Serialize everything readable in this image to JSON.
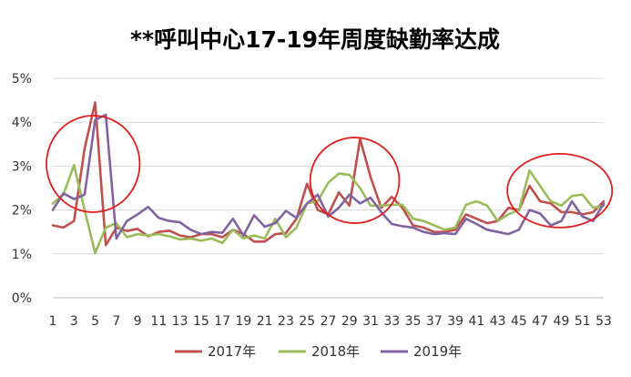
{
  "chart_data": {
    "type": "line",
    "title": "**呼叫中心17-19年周度缺勤率达成",
    "xlabel": "",
    "ylabel": "",
    "ylim": [
      0,
      5
    ],
    "y_ticks": [
      "0%",
      "1%",
      "2%",
      "3%",
      "4%",
      "5%"
    ],
    "x": [
      1,
      2,
      3,
      4,
      5,
      6,
      7,
      8,
      9,
      10,
      11,
      12,
      13,
      14,
      15,
      16,
      17,
      18,
      19,
      20,
      21,
      22,
      23,
      24,
      25,
      26,
      27,
      28,
      29,
      30,
      31,
      32,
      33,
      34,
      35,
      36,
      37,
      38,
      39,
      40,
      41,
      42,
      43,
      44,
      45,
      46,
      47,
      48,
      49,
      50,
      51,
      52,
      53
    ],
    "x_tick_labels": [
      "1",
      "3",
      "5",
      "7",
      "9",
      "11",
      "13",
      "15",
      "17",
      "19",
      "21",
      "23",
      "25",
      "27",
      "29",
      "31",
      "33",
      "35",
      "37",
      "39",
      "41",
      "43",
      "45",
      "47",
      "49",
      "51",
      "53"
    ],
    "grid": "horizontal",
    "legend_position": "bottom",
    "series": [
      {
        "name": "2017年",
        "color": "#C0504D",
        "values": [
          1.65,
          1.6,
          1.75,
          3.4,
          4.45,
          1.2,
          1.6,
          1.52,
          1.57,
          1.4,
          1.5,
          1.53,
          1.42,
          1.38,
          1.45,
          1.45,
          1.38,
          1.55,
          1.45,
          1.28,
          1.28,
          1.45,
          1.47,
          1.8,
          2.6,
          2.0,
          1.9,
          2.4,
          2.1,
          3.62,
          2.75,
          2.05,
          2.3,
          2.05,
          1.65,
          1.6,
          1.5,
          1.5,
          1.55,
          1.9,
          1.8,
          1.7,
          1.75,
          2.05,
          2.0,
          2.55,
          2.2,
          2.15,
          1.95,
          1.95,
          1.9,
          1.95,
          2.2
        ]
      },
      {
        "name": "2018年",
        "color": "#9BBB59",
        "values": [
          2.15,
          2.35,
          3.02,
          2.0,
          1.02,
          1.6,
          1.7,
          1.38,
          1.45,
          1.42,
          1.45,
          1.4,
          1.33,
          1.35,
          1.3,
          1.35,
          1.25,
          1.55,
          1.35,
          1.42,
          1.35,
          1.8,
          1.38,
          1.6,
          2.15,
          2.2,
          2.62,
          2.83,
          2.8,
          2.5,
          2.1,
          2.1,
          2.12,
          2.12,
          1.8,
          1.75,
          1.65,
          1.55,
          1.6,
          2.12,
          2.2,
          2.1,
          1.75,
          1.9,
          2.0,
          2.9,
          2.55,
          2.2,
          2.1,
          2.32,
          2.35,
          2.05,
          2.1
        ]
      },
      {
        "name": "2019年",
        "color": "#8064A2",
        "values": [
          2.0,
          2.38,
          2.25,
          2.35,
          4.05,
          4.17,
          1.35,
          1.75,
          1.9,
          2.07,
          1.82,
          1.75,
          1.72,
          1.55,
          1.45,
          1.5,
          1.48,
          1.8,
          1.42,
          1.88,
          1.62,
          1.7,
          1.98,
          1.82,
          2.15,
          2.35,
          1.85,
          2.05,
          2.35,
          2.15,
          2.28,
          1.95,
          1.68,
          1.63,
          1.6,
          1.5,
          1.45,
          1.47,
          1.45,
          1.8,
          1.68,
          1.55,
          1.5,
          1.45,
          1.55,
          2.0,
          1.92,
          1.65,
          1.75,
          2.2,
          1.85,
          1.75,
          2.15
        ]
      }
    ],
    "annotations": [
      {
        "shape": "ellipse",
        "color": "#E02020",
        "x_range": [
          0.4,
          9.2
        ],
        "y_range": [
          1.95,
          4.15
        ]
      },
      {
        "shape": "ellipse",
        "color": "#E02020",
        "x_range": [
          25.3,
          33.7
        ],
        "y_range": [
          1.7,
          3.65
        ]
      },
      {
        "shape": "ellipse",
        "color": "#E02020",
        "x_range": [
          43.9,
          53.8
        ],
        "y_range": [
          1.6,
          3.28
        ]
      }
    ]
  }
}
